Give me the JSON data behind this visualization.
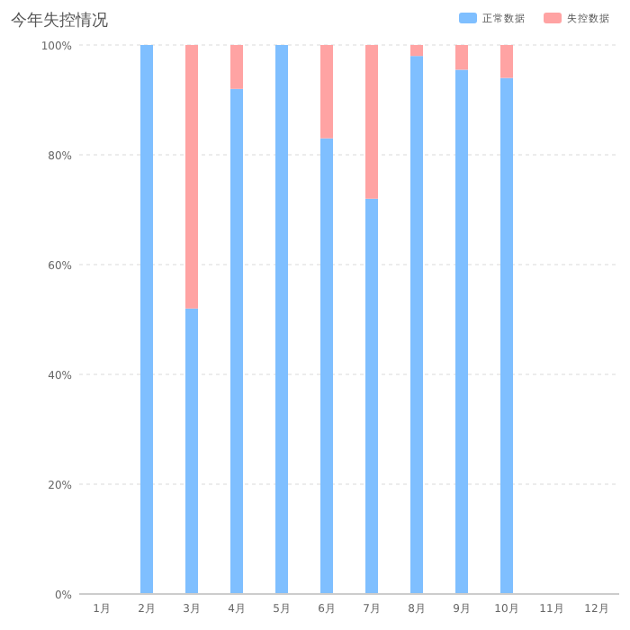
{
  "chart_data": {
    "type": "bar",
    "title": "今年失控情况",
    "stacked": true,
    "categories": [
      "1月",
      "2月",
      "3月",
      "4月",
      "5月",
      "6月",
      "7月",
      "8月",
      "9月",
      "10月",
      "11月",
      "12月"
    ],
    "series": [
      {
        "name": "正常数据",
        "color": "#7fbfff",
        "values": [
          null,
          100,
          52,
          92,
          100,
          83,
          72,
          98,
          95.5,
          94,
          null,
          null
        ]
      },
      {
        "name": "失控数据",
        "color": "#ffa3a3",
        "values": [
          null,
          0,
          48,
          8,
          0,
          17,
          28,
          2,
          4.5,
          6,
          null,
          null
        ]
      }
    ],
    "ylim": [
      0,
      100
    ],
    "yticks": [
      {
        "value": 0,
        "label": "0%"
      },
      {
        "value": 20,
        "label": "20%"
      },
      {
        "value": 40,
        "label": "40%"
      },
      {
        "value": 60,
        "label": "60%"
      },
      {
        "value": 80,
        "label": "80%"
      },
      {
        "value": 100,
        "label": "100%"
      }
    ],
    "grid": "y",
    "legend": "top right"
  }
}
